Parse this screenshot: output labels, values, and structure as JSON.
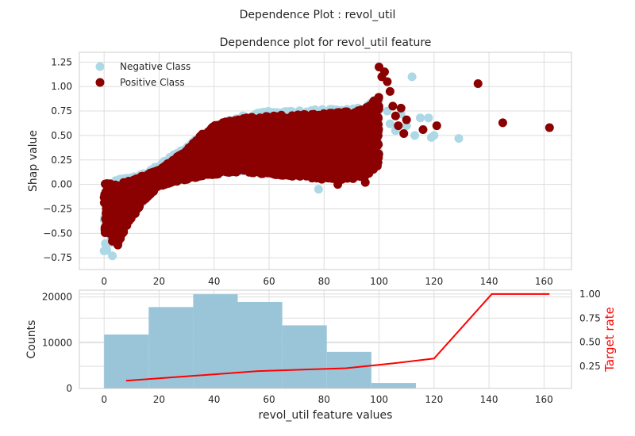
{
  "figure": {
    "suptitle": "Dependence Plot : revol_util"
  },
  "chart_data": [
    {
      "type": "scatter",
      "title": "Dependence plot for revol_util feature",
      "xlabel": "",
      "ylabel": "Shap value",
      "xlim": [
        -9,
        170
      ],
      "ylim": [
        -0.87,
        1.35
      ],
      "xticks": [
        "0",
        "20",
        "40",
        "60",
        "80",
        "100",
        "120",
        "140",
        "160"
      ],
      "yticks": [
        "−0.75",
        "−0.50",
        "−0.25",
        "0.00",
        "0.25",
        "0.50",
        "0.75",
        "1.00",
        "1.25"
      ],
      "grid": true,
      "legend_position": "top-left",
      "series": [
        {
          "name": "Negative Class",
          "color": "#add8e6",
          "bulk_trend": {
            "x": [
              0,
              5,
              10,
              15,
              20,
              25,
              30,
              35,
              40,
              45,
              50,
              60,
              70,
              80,
              90,
              95,
              100
            ],
            "y_low": [
              -0.72,
              -0.55,
              -0.3,
              -0.15,
              0.0,
              0.05,
              0.08,
              0.1,
              0.12,
              0.12,
              0.12,
              0.1,
              0.1,
              0.08,
              0.08,
              0.1,
              0.2
            ],
            "y_high": [
              0.05,
              0.05,
              0.08,
              0.12,
              0.2,
              0.3,
              0.38,
              0.5,
              0.6,
              0.65,
              0.7,
              0.75,
              0.75,
              0.77,
              0.77,
              0.8,
              0.9
            ]
          },
          "outliers": [
            {
              "x": 103,
              "y": 0.75
            },
            {
              "x": 104,
              "y": 0.62
            },
            {
              "x": 106,
              "y": 0.55
            },
            {
              "x": 108,
              "y": 0.72
            },
            {
              "x": 110,
              "y": 0.6
            },
            {
              "x": 112,
              "y": 1.1
            },
            {
              "x": 113,
              "y": 0.5
            },
            {
              "x": 115,
              "y": 0.68
            },
            {
              "x": 118,
              "y": 0.68
            },
            {
              "x": 119,
              "y": 0.48
            },
            {
              "x": 120,
              "y": 0.5
            },
            {
              "x": 129,
              "y": 0.47
            },
            {
              "x": 78,
              "y": -0.05
            },
            {
              "x": 0,
              "y": -0.68
            },
            {
              "x": 3,
              "y": -0.73
            }
          ]
        },
        {
          "name": "Positive Class",
          "color": "#8b0000",
          "bulk_trend": {
            "x": [
              0,
              5,
              10,
              15,
              20,
              25,
              30,
              35,
              40,
              45,
              50,
              60,
              70,
              80,
              90,
              95,
              100
            ],
            "y_low": [
              -0.5,
              -0.6,
              -0.35,
              -0.15,
              -0.02,
              0.02,
              0.05,
              0.08,
              0.1,
              0.12,
              0.12,
              0.1,
              0.08,
              0.05,
              0.05,
              0.08,
              0.2
            ],
            "y_high": [
              0.02,
              0.0,
              0.05,
              0.1,
              0.15,
              0.25,
              0.35,
              0.5,
              0.6,
              0.65,
              0.68,
              0.7,
              0.72,
              0.73,
              0.75,
              0.78,
              0.9
            ]
          },
          "outliers": [
            {
              "x": 100,
              "y": 1.2
            },
            {
              "x": 101,
              "y": 1.1
            },
            {
              "x": 102,
              "y": 1.15
            },
            {
              "x": 103,
              "y": 1.05
            },
            {
              "x": 104,
              "y": 0.95
            },
            {
              "x": 105,
              "y": 0.8
            },
            {
              "x": 106,
              "y": 0.7
            },
            {
              "x": 107,
              "y": 0.6
            },
            {
              "x": 108,
              "y": 0.78
            },
            {
              "x": 109,
              "y": 0.52
            },
            {
              "x": 110,
              "y": 0.66
            },
            {
              "x": 116,
              "y": 0.56
            },
            {
              "x": 121,
              "y": 0.6
            },
            {
              "x": 136,
              "y": 1.03
            },
            {
              "x": 145,
              "y": 0.63
            },
            {
              "x": 162,
              "y": 0.58
            },
            {
              "x": 85,
              "y": 0.0
            },
            {
              "x": 95,
              "y": 0.02
            },
            {
              "x": 3,
              "y": -0.58
            },
            {
              "x": 5,
              "y": -0.62
            }
          ]
        }
      ]
    },
    {
      "type": "bar",
      "title": "",
      "xlabel": "revol_util feature values",
      "ylabel": "Counts",
      "y2label": "Target rate",
      "xlim": [
        -9,
        170
      ],
      "ylim": [
        0,
        21500
      ],
      "y2lim": [
        0.02,
        1.04
      ],
      "xticks": [
        "0",
        "20",
        "40",
        "60",
        "80",
        "100",
        "120",
        "140",
        "160"
      ],
      "yticks": [
        "0",
        "10000",
        "20000"
      ],
      "y2ticks": [
        "0.25",
        "0.50",
        "0.75",
        "1.00"
      ],
      "grid": true,
      "bins": [
        {
          "x0": 0,
          "x1": 16.2,
          "count": 11800
        },
        {
          "x0": 16.2,
          "x1": 32.4,
          "count": 17800
        },
        {
          "x0": 32.4,
          "x1": 48.6,
          "count": 20600
        },
        {
          "x0": 48.6,
          "x1": 64.8,
          "count": 18900
        },
        {
          "x0": 64.8,
          "x1": 81.0,
          "count": 13800
        },
        {
          "x0": 81.0,
          "x1": 97.2,
          "count": 8000
        },
        {
          "x0": 97.2,
          "x1": 113.4,
          "count": 1200
        },
        {
          "x0": 113.4,
          "x1": 129.6,
          "count": 60
        },
        {
          "x0": 129.6,
          "x1": 145.8,
          "count": 5
        },
        {
          "x0": 145.8,
          "x1": 162.0,
          "count": 3
        }
      ],
      "bar_color": "#9ac5d9",
      "target_rate": {
        "color": "#ff0000",
        "x": [
          8,
          56,
          88,
          105,
          120,
          141,
          162
        ],
        "y": [
          0.1,
          0.2,
          0.23,
          0.28,
          0.33,
          1.0,
          1.0
        ]
      }
    }
  ]
}
